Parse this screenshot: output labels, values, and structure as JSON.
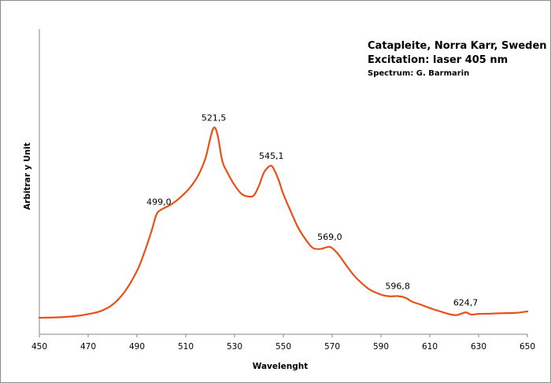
{
  "chart_data": {
    "type": "line",
    "title_lines": [
      "Catapleite, Norra Karr, Sweden",
      "Excitation:  laser 405 nm"
    ],
    "subtitle": "Spectrum: G. Barmarin",
    "xlabel": "Wavelenght",
    "ylabel": "Arbitrar y Unit",
    "xlim": [
      450,
      650
    ],
    "ylim": [
      0,
      100
    ],
    "xticks": [
      "450",
      "470",
      "490",
      "510",
      "530",
      "550",
      "570",
      "590",
      "610",
      "630",
      "650"
    ],
    "grid": false,
    "line_color": "#e8501a",
    "peaks": [
      {
        "x": 499.0,
        "label": "499,0"
      },
      {
        "x": 521.5,
        "label": "521,5"
      },
      {
        "x": 545.1,
        "label": "545,1"
      },
      {
        "x": 569.0,
        "label": "569,0"
      },
      {
        "x": 596.8,
        "label": "596,8"
      },
      {
        "x": 624.7,
        "label": "624,7"
      }
    ],
    "series": [
      {
        "x": [
          450,
          455,
          460,
          465,
          470,
          475,
          480,
          485,
          490,
          493,
          496,
          498,
          500,
          503,
          506,
          509,
          512,
          515,
          518,
          520,
          521.5,
          523,
          525,
          527,
          530,
          533,
          536,
          538,
          540,
          542,
          544,
          545.1,
          546,
          548,
          550,
          553,
          556,
          559,
          562,
          565,
          567,
          569,
          571,
          573,
          576,
          579,
          582,
          585,
          588,
          591,
          594,
          597,
          600,
          603,
          606,
          610,
          614,
          618,
          621,
          624.7,
          627,
          630,
          635,
          640,
          645,
          650
        ],
        "y": [
          0.3,
          0.4,
          0.6,
          1,
          1.8,
          3,
          5.7,
          11,
          19.5,
          27,
          36,
          42.7,
          44.7,
          46.2,
          48.2,
          50.8,
          54,
          58.5,
          65.5,
          73.7,
          78.3,
          75.5,
          64.5,
          60,
          54.7,
          51,
          50,
          50.6,
          54.5,
          59.8,
          62.3,
          62.6,
          61.5,
          57,
          51,
          44,
          37.4,
          32.6,
          29,
          28.5,
          29,
          29.4,
          28,
          25.7,
          21.5,
          17.6,
          14.6,
          12.1,
          10.6,
          9.5,
          9.1,
          9.2,
          8.5,
          6.8,
          5.8,
          4.3,
          3,
          1.8,
          1.4,
          2.5,
          1.6,
          1.9,
          2,
          2.2,
          2.3,
          2.9
        ]
      }
    ]
  }
}
